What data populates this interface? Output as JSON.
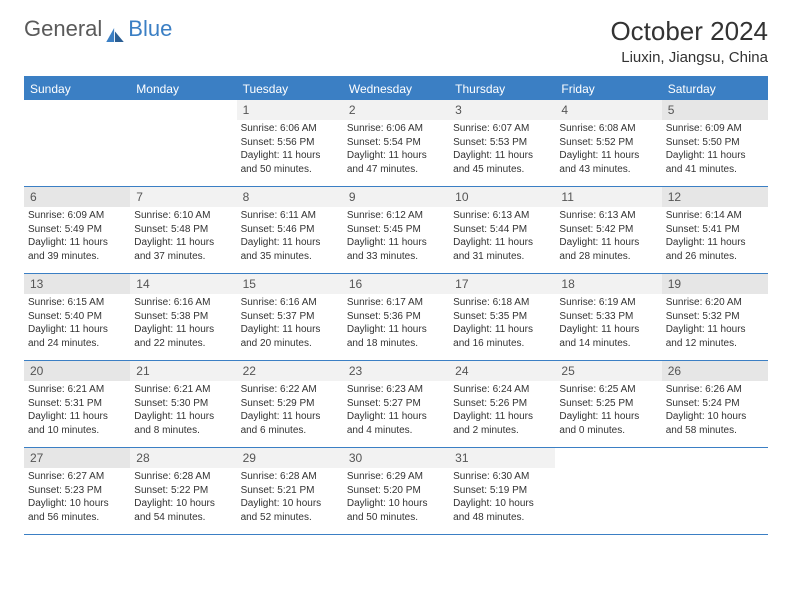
{
  "logo": {
    "general": "General",
    "blue": "Blue"
  },
  "title": "October 2024",
  "location": "Liuxin, Jiangsu, China",
  "colors": {
    "accent": "#3b7fc4",
    "header_text": "#ffffff",
    "page_bg": "#ffffff",
    "daynum_bg": "#f2f2f2",
    "daynum_bg_shade": "#e6e6e6",
    "body_text": "#333333"
  },
  "fonts": {
    "title_size_pt": 20,
    "location_size_pt": 12,
    "dow_size_pt": 9,
    "daynum_size_pt": 9,
    "body_size_pt": 7.5
  },
  "daysOfWeek": [
    "Sunday",
    "Monday",
    "Tuesday",
    "Wednesday",
    "Thursday",
    "Friday",
    "Saturday"
  ],
  "weeks": [
    [
      {
        "empty": true
      },
      {
        "empty": true
      },
      {
        "n": "1",
        "shade": false,
        "sr": "Sunrise: 6:06 AM",
        "ss": "Sunset: 5:56 PM",
        "dl": "Daylight: 11 hours and 50 minutes."
      },
      {
        "n": "2",
        "shade": false,
        "sr": "Sunrise: 6:06 AM",
        "ss": "Sunset: 5:54 PM",
        "dl": "Daylight: 11 hours and 47 minutes."
      },
      {
        "n": "3",
        "shade": false,
        "sr": "Sunrise: 6:07 AM",
        "ss": "Sunset: 5:53 PM",
        "dl": "Daylight: 11 hours and 45 minutes."
      },
      {
        "n": "4",
        "shade": false,
        "sr": "Sunrise: 6:08 AM",
        "ss": "Sunset: 5:52 PM",
        "dl": "Daylight: 11 hours and 43 minutes."
      },
      {
        "n": "5",
        "shade": true,
        "sr": "Sunrise: 6:09 AM",
        "ss": "Sunset: 5:50 PM",
        "dl": "Daylight: 11 hours and 41 minutes."
      }
    ],
    [
      {
        "n": "6",
        "shade": true,
        "sr": "Sunrise: 6:09 AM",
        "ss": "Sunset: 5:49 PM",
        "dl": "Daylight: 11 hours and 39 minutes."
      },
      {
        "n": "7",
        "shade": false,
        "sr": "Sunrise: 6:10 AM",
        "ss": "Sunset: 5:48 PM",
        "dl": "Daylight: 11 hours and 37 minutes."
      },
      {
        "n": "8",
        "shade": false,
        "sr": "Sunrise: 6:11 AM",
        "ss": "Sunset: 5:46 PM",
        "dl": "Daylight: 11 hours and 35 minutes."
      },
      {
        "n": "9",
        "shade": false,
        "sr": "Sunrise: 6:12 AM",
        "ss": "Sunset: 5:45 PM",
        "dl": "Daylight: 11 hours and 33 minutes."
      },
      {
        "n": "10",
        "shade": false,
        "sr": "Sunrise: 6:13 AM",
        "ss": "Sunset: 5:44 PM",
        "dl": "Daylight: 11 hours and 31 minutes."
      },
      {
        "n": "11",
        "shade": false,
        "sr": "Sunrise: 6:13 AM",
        "ss": "Sunset: 5:42 PM",
        "dl": "Daylight: 11 hours and 28 minutes."
      },
      {
        "n": "12",
        "shade": true,
        "sr": "Sunrise: 6:14 AM",
        "ss": "Sunset: 5:41 PM",
        "dl": "Daylight: 11 hours and 26 minutes."
      }
    ],
    [
      {
        "n": "13",
        "shade": true,
        "sr": "Sunrise: 6:15 AM",
        "ss": "Sunset: 5:40 PM",
        "dl": "Daylight: 11 hours and 24 minutes."
      },
      {
        "n": "14",
        "shade": false,
        "sr": "Sunrise: 6:16 AM",
        "ss": "Sunset: 5:38 PM",
        "dl": "Daylight: 11 hours and 22 minutes."
      },
      {
        "n": "15",
        "shade": false,
        "sr": "Sunrise: 6:16 AM",
        "ss": "Sunset: 5:37 PM",
        "dl": "Daylight: 11 hours and 20 minutes."
      },
      {
        "n": "16",
        "shade": false,
        "sr": "Sunrise: 6:17 AM",
        "ss": "Sunset: 5:36 PM",
        "dl": "Daylight: 11 hours and 18 minutes."
      },
      {
        "n": "17",
        "shade": false,
        "sr": "Sunrise: 6:18 AM",
        "ss": "Sunset: 5:35 PM",
        "dl": "Daylight: 11 hours and 16 minutes."
      },
      {
        "n": "18",
        "shade": false,
        "sr": "Sunrise: 6:19 AM",
        "ss": "Sunset: 5:33 PM",
        "dl": "Daylight: 11 hours and 14 minutes."
      },
      {
        "n": "19",
        "shade": true,
        "sr": "Sunrise: 6:20 AM",
        "ss": "Sunset: 5:32 PM",
        "dl": "Daylight: 11 hours and 12 minutes."
      }
    ],
    [
      {
        "n": "20",
        "shade": true,
        "sr": "Sunrise: 6:21 AM",
        "ss": "Sunset: 5:31 PM",
        "dl": "Daylight: 11 hours and 10 minutes."
      },
      {
        "n": "21",
        "shade": false,
        "sr": "Sunrise: 6:21 AM",
        "ss": "Sunset: 5:30 PM",
        "dl": "Daylight: 11 hours and 8 minutes."
      },
      {
        "n": "22",
        "shade": false,
        "sr": "Sunrise: 6:22 AM",
        "ss": "Sunset: 5:29 PM",
        "dl": "Daylight: 11 hours and 6 minutes."
      },
      {
        "n": "23",
        "shade": false,
        "sr": "Sunrise: 6:23 AM",
        "ss": "Sunset: 5:27 PM",
        "dl": "Daylight: 11 hours and 4 minutes."
      },
      {
        "n": "24",
        "shade": false,
        "sr": "Sunrise: 6:24 AM",
        "ss": "Sunset: 5:26 PM",
        "dl": "Daylight: 11 hours and 2 minutes."
      },
      {
        "n": "25",
        "shade": false,
        "sr": "Sunrise: 6:25 AM",
        "ss": "Sunset: 5:25 PM",
        "dl": "Daylight: 11 hours and 0 minutes."
      },
      {
        "n": "26",
        "shade": true,
        "sr": "Sunrise: 6:26 AM",
        "ss": "Sunset: 5:24 PM",
        "dl": "Daylight: 10 hours and 58 minutes."
      }
    ],
    [
      {
        "n": "27",
        "shade": true,
        "sr": "Sunrise: 6:27 AM",
        "ss": "Sunset: 5:23 PM",
        "dl": "Daylight: 10 hours and 56 minutes."
      },
      {
        "n": "28",
        "shade": false,
        "sr": "Sunrise: 6:28 AM",
        "ss": "Sunset: 5:22 PM",
        "dl": "Daylight: 10 hours and 54 minutes."
      },
      {
        "n": "29",
        "shade": false,
        "sr": "Sunrise: 6:28 AM",
        "ss": "Sunset: 5:21 PM",
        "dl": "Daylight: 10 hours and 52 minutes."
      },
      {
        "n": "30",
        "shade": false,
        "sr": "Sunrise: 6:29 AM",
        "ss": "Sunset: 5:20 PM",
        "dl": "Daylight: 10 hours and 50 minutes."
      },
      {
        "n": "31",
        "shade": false,
        "sr": "Sunrise: 6:30 AM",
        "ss": "Sunset: 5:19 PM",
        "dl": "Daylight: 10 hours and 48 minutes."
      },
      {
        "empty": true
      },
      {
        "empty": true
      }
    ]
  ]
}
